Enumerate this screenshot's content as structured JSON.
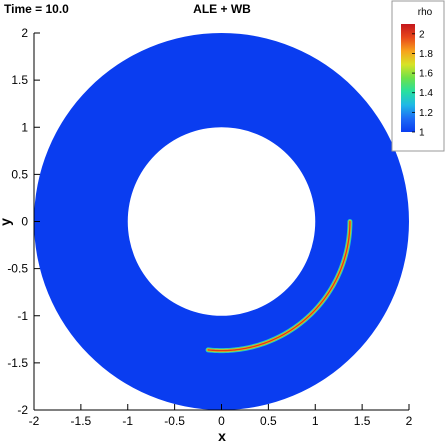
{
  "header": {
    "time_label": "Time = 10.0",
    "title": "ALE + WB"
  },
  "chart_data": {
    "type": "heatmap",
    "title": "ALE + WB",
    "xlabel": "x",
    "ylabel": "y",
    "xlim": [
      -2,
      2
    ],
    "ylim": [
      -2,
      2
    ],
    "xticks": [
      -2,
      -1.5,
      -1,
      -0.5,
      0,
      0.5,
      1,
      1.5,
      2
    ],
    "yticks": [
      -2,
      -1.5,
      -1,
      -0.5,
      0,
      0.5,
      1,
      1.5,
      2
    ],
    "xtick_labels": [
      "-2",
      "-1.5",
      "-1",
      "-0.5",
      "0",
      "0.5",
      "1",
      "1.5",
      "2"
    ],
    "ytick_labels": [
      "-2",
      "-1.5",
      "-1",
      "-0.5",
      "0",
      "0.5",
      "1",
      "1.5",
      "2"
    ],
    "domain": {
      "shape": "annulus",
      "inner_radius": 1,
      "outer_radius": 2
    },
    "background_value": 1,
    "feature": {
      "shape": "arc",
      "radius": 1.37,
      "angle_start_deg": -96,
      "angle_end_deg": 0,
      "peak_value": 2
    },
    "colorbar": {
      "title": "rho",
      "min": 1,
      "max": 2.1,
      "ticks": [
        2,
        1.8,
        1.6,
        1.4,
        1.2,
        1
      ],
      "tick_labels": [
        "2",
        "1.8",
        "1.6",
        "1.4",
        "1.2",
        "1"
      ],
      "colors": [
        "#0a3df0",
        "#1d6cf5",
        "#1fb8e6",
        "#27e0a0",
        "#6de14a",
        "#d7e326",
        "#f7a21c",
        "#e8481b",
        "#c4161c"
      ]
    },
    "grid": false,
    "legend_position": "top-right"
  }
}
